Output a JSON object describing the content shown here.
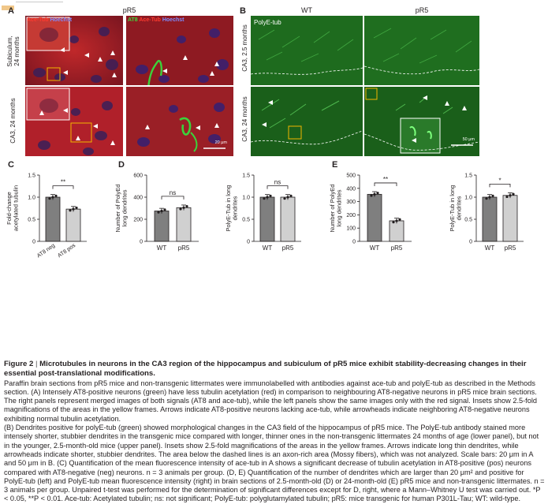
{
  "panelA": {
    "letter": "A",
    "title": "pR5",
    "rows": [
      "Subiculum,\n24 months",
      "CA3, 24 months"
    ],
    "label_left_part1": "Ace-Tub",
    "label_left_part2": "Hoechst",
    "label_right_part1": "AT8",
    "label_right_part2": "Ace-Tub",
    "label_right_part3": "Hoechst",
    "scale_bar": "20 μm",
    "colors": {
      "ace_tub": "#e8211c",
      "hoechst": "#5b6cff",
      "at8": "#3ddc3d"
    }
  },
  "panelB": {
    "letter": "B",
    "col_wt": "WT",
    "col_pr5": "pR5",
    "stain_label": "PolyE-tub",
    "rows": [
      "CA3, 2.5 months",
      "CA3, 24 months"
    ],
    "scale_bar": "50 μm"
  },
  "chart_C": {
    "letter": "C",
    "chart_data": {
      "type": "bar",
      "categories": [
        "AT8 neg",
        "AT8 pos"
      ],
      "values": [
        1.0,
        0.73
      ],
      "ylabel": "Fold-change\nacetylated tubulin",
      "ylim": [
        0,
        1.5
      ],
      "yticks": [
        "0",
        "0.5",
        "1.0",
        "1.5"
      ],
      "significance": "**",
      "bar_colors": [
        "#7f7f7f",
        "#d0d0d0"
      ]
    }
  },
  "chart_D1": {
    "letter": "D",
    "chart_data": {
      "type": "bar",
      "categories": [
        "WT",
        "pR5"
      ],
      "values": [
        275,
        305
      ],
      "ylabel": "Number of PolyEd\nlong dendrites",
      "ylim": [
        0,
        600
      ],
      "yticks": [
        "0",
        "200",
        "400",
        "600"
      ],
      "significance": "ns",
      "bar_colors": [
        "#7f7f7f",
        "#d0d0d0"
      ]
    }
  },
  "chart_D2": {
    "chart_data": {
      "type": "bar",
      "categories": [
        "WT",
        "pR5"
      ],
      "values": [
        1.0,
        1.0
      ],
      "ylabel": "PolyE-Tub in long\ndendrites",
      "ylim": [
        0,
        1.5
      ],
      "yticks": [
        "0",
        "0.5",
        "1.0",
        "1.5"
      ],
      "significance": "ns",
      "bar_colors": [
        "#7f7f7f",
        "#d0d0d0"
      ]
    }
  },
  "chart_E1": {
    "letter": "E",
    "chart_data": {
      "type": "bar",
      "categories": [
        "WT",
        "pR5"
      ],
      "values": [
        355,
        155
      ],
      "ylabel": "Number of PolyEd\nlong dendrites",
      "ylim": [
        0,
        500
      ],
      "yticks": [
        "0",
        "100",
        "200",
        "300",
        "400",
        "500"
      ],
      "significance": "**",
      "bar_colors": [
        "#7f7f7f",
        "#d0d0d0"
      ]
    }
  },
  "chart_E2": {
    "chart_data": {
      "type": "bar",
      "categories": [
        "WT",
        "pR5"
      ],
      "values": [
        1.0,
        1.04
      ],
      "ylabel": "PolyE-Tub in long\ndendrites",
      "ylim": [
        0,
        1.5
      ],
      "yticks": [
        "0",
        "0.5",
        "1.0",
        "1.5"
      ],
      "significance": "*",
      "bar_colors": [
        "#7f7f7f",
        "#d0d0d0"
      ]
    }
  },
  "caption": {
    "figure_label": "Figure 2",
    "separator": "|",
    "title": "Microtubules in neurons in the CA3 region of the hippocampus and subiculum of pR5 mice exhibit stability-decreasing changes in their essential post-translational modifications.",
    "body": [
      "Paraffin brain sections from pR5 mice and non-transgenic littermates were immunolabelled with antibodies against ace-tub and polyE-tub as described in the Methods section. (A) Intensely AT8-positive neurons (green) have less tubulin acetylation (red) in comparison to neighbouring AT8-negative neurons in pR5 mice brain sections. The right panels represent merged images of both signals (AT8 and ace-tub), while the left panels show the same images only with the red signal. Insets show 2.5-fold magnifications of the areas in the yellow frames. Arrows indicate AT8-positive neurons lacking ace-tub, while arrowheads indicate neighboring AT8-negative neurons exhibiting normal tubulin acetylation.",
      "(B) Dendrites positive for polyE-tub (green) showed morphological changes in the CA3 field of the hippocampus of pR5 mice. The PolyE-tub antibody stained more intensely shorter, stubbier dendrites in the transgenic mice compared with longer, thinner ones in the non-transgenic littermates 24 months of age (lower panel), but not in the younger, 2.5-month-old mice (upper panel). Insets show 2.5-fold magnifications of the areas in the yellow frames. Arrows indicate long thin dendrites, while arrowheads indicate shorter, stubbier dendrites. The area below the dashed lines is an axon-rich area (Mossy fibers), which was not analyzed. Scale bars: 20 μm in A and 50 μm in B. (C) Quantification of the mean fluorescence intensity of ace-tub in A shows a significant decrease of tubulin acetylation in AT8-positive (pos) neurons compared with AT8-negative (neg) neurons. n = 3 animals per group. (D, E) Quantification of the number of dendrites which are larger than 20 μm² and positive for PolyE-tub (left) and PolyE-tub mean fluorescence intensity (right) in brain sections of 2.5-month-old (D) or 24-month-old (E) pR5 mice and non-transgenic littermates. n = 3 animals per group. Unpaired t-test was performed for the determination of significant differences except for D, right, where a Mann–Whitney U test was carried out. *P < 0.05, **P < 0.01. Ace-tub: Acetylated tubulin; ns: not significant; PolyE-tub: polyglutamylated tubulin; pR5: mice transgenic for human P301L-Tau; WT: wild-type."
    ]
  }
}
